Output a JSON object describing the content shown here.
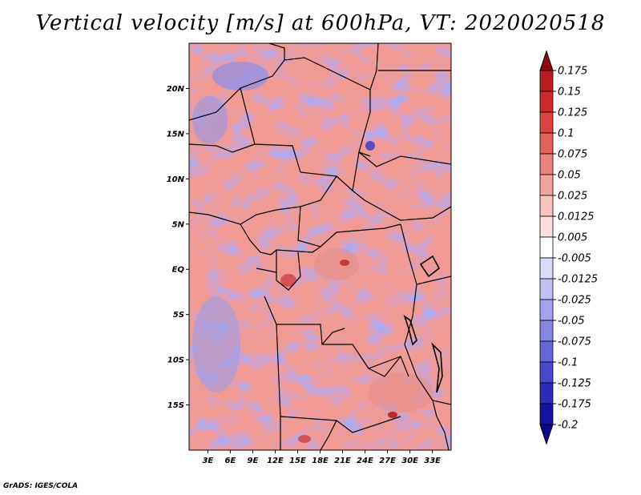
{
  "title": "Vertical velocity [m/s] at 600hPa, VT: 2020020518",
  "credit": "GrADS: IGES/COLA",
  "map": {
    "lat_labels": [
      {
        "lat": 20,
        "label": "20N"
      },
      {
        "lat": 15,
        "label": "15N"
      },
      {
        "lat": 10,
        "label": "10N"
      },
      {
        "lat": 5,
        "label": "5N"
      },
      {
        "lat": 0,
        "label": "EQ"
      },
      {
        "lat": -5,
        "label": "5S"
      },
      {
        "lat": -10,
        "label": "10S"
      },
      {
        "lat": -15,
        "label": "15S"
      }
    ],
    "lon_labels": [
      {
        "lon": 3,
        "label": "3E"
      },
      {
        "lon": 6,
        "label": "6E"
      },
      {
        "lon": 9,
        "label": "9E"
      },
      {
        "lon": 12,
        "label": "12E"
      },
      {
        "lon": 15,
        "label": "15E"
      },
      {
        "lon": 18,
        "label": "18E"
      },
      {
        "lon": 21,
        "label": "21E"
      },
      {
        "lon": 24,
        "label": "24E"
      },
      {
        "lon": 27,
        "label": "27E"
      },
      {
        "lon": 30,
        "label": "30E"
      },
      {
        "lon": 33,
        "label": "33E"
      }
    ],
    "lon_range": [
      0.5,
      35.5
    ],
    "lat_range": [
      -20,
      25
    ]
  },
  "colorbar": {
    "levels": [
      {
        "label": "0.175",
        "color": "#a50f15"
      },
      {
        "label": "0.15",
        "color": "#b81d22"
      },
      {
        "label": "0.125",
        "color": "#cb2b2b"
      },
      {
        "label": "0.1",
        "color": "#db4541"
      },
      {
        "label": "0.075",
        "color": "#e4625d"
      },
      {
        "label": "0.05",
        "color": "#ec827c"
      },
      {
        "label": "0.025",
        "color": "#f3a39d"
      },
      {
        "label": "0.0125",
        "color": "#f8c4bf"
      },
      {
        "label": "0.005",
        "color": "#fcdfdc"
      },
      {
        "label": "-0.005",
        "color": "#ffffff"
      },
      {
        "label": "-0.0125",
        "color": "#dcdcfa"
      },
      {
        "label": "-0.025",
        "color": "#c0c0f5"
      },
      {
        "label": "-0.05",
        "color": "#a3a3ef"
      },
      {
        "label": "-0.075",
        "color": "#8585e6"
      },
      {
        "label": "-0.1",
        "color": "#6666da"
      },
      {
        "label": "-0.125",
        "color": "#4848cc"
      },
      {
        "label": "-0.175",
        "color": "#2c2cb8"
      },
      {
        "label": "-0.2",
        "color": "#1414a0"
      }
    ],
    "top_color": "#8b0a0f",
    "bottom_color": "#0a0a8a"
  }
}
